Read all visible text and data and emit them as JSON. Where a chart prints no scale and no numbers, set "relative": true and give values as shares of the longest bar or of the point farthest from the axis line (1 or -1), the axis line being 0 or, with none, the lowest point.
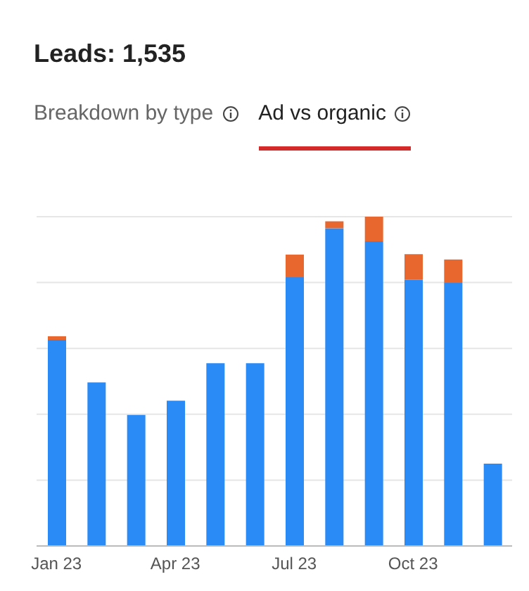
{
  "chart_data": {
    "type": "bar",
    "title": "Leads: 1,535",
    "annotations": [
      "Breakdown by type",
      "Ad vs organic"
    ],
    "categories": [
      "Jan 23",
      null,
      null,
      "Apr 23",
      null,
      null,
      "Jul 23",
      null,
      null,
      "Oct 23",
      null,
      null
    ],
    "stacked": true,
    "relative": true,
    "grid": "y",
    "series": [
      {
        "color": "#2a8af6",
        "values": [
          0.626,
          0.497,
          0.398,
          0.441,
          0.555,
          0.555,
          0.816,
          0.965,
          0.925,
          0.808,
          0.799,
          0.25
        ]
      },
      {
        "color": "#e8672f",
        "values": [
          0.011,
          0,
          0,
          0,
          0,
          0,
          0.069,
          0.021,
          0.075,
          0.078,
          0.071,
          0
        ]
      }
    ]
  }
}
